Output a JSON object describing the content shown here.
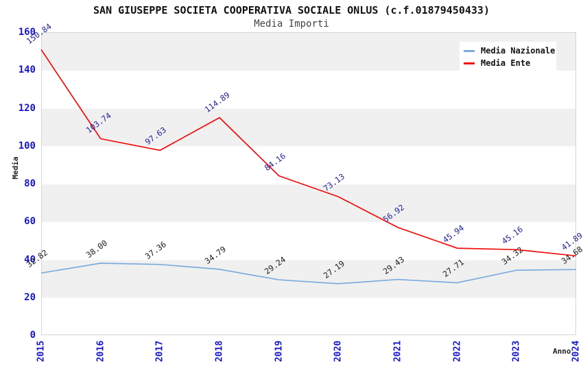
{
  "header": {
    "title": "SAN GIUSEPPE SOCIETA COOPERATIVA SOCIALE ONLUS (c.f.01879450433)",
    "subtitle": "Media Importi"
  },
  "chart_data": {
    "type": "line",
    "x": [
      2015,
      2016,
      2017,
      2018,
      2019,
      2020,
      2021,
      2022,
      2023,
      2024
    ],
    "series": [
      {
        "name": "Media Nazionale",
        "color": "#7cacdf",
        "label_color": "#1a1a1a",
        "values": [
          32.82,
          38.0,
          37.36,
          34.79,
          29.24,
          27.19,
          29.43,
          27.71,
          34.32,
          34.68
        ],
        "point_labels": [
          "32.82",
          "38.00",
          "37.36",
          "34.79",
          "29.24",
          "27.19",
          "29.43",
          "27.71",
          "34.32",
          "34.68"
        ]
      },
      {
        "name": "Media Ente",
        "color": "#f20d0d",
        "label_color": "#22229b",
        "values": [
          150.84,
          103.74,
          97.63,
          114.89,
          84.16,
          73.13,
          56.92,
          45.94,
          45.16,
          41.89
        ],
        "point_labels": [
          "150.84",
          "103.74",
          "97.63",
          "114.89",
          "84.16",
          "73.13",
          "56.92",
          "45.94",
          "45.16",
          "41.89"
        ]
      }
    ],
    "xlabel": "Anno",
    "ylabel": "Media",
    "ylim": [
      0,
      160
    ],
    "yticks": [
      0,
      20,
      40,
      60,
      80,
      100,
      120,
      140,
      160
    ],
    "grid": "banded-horizontal",
    "band_color": "#f0f0f0",
    "axis_tick_color": "#1515cd",
    "legend_position": "top-right"
  }
}
